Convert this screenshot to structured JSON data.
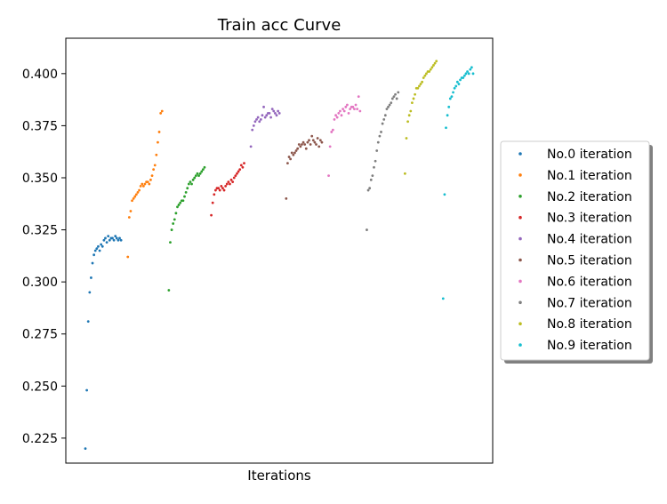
{
  "chart_data": {
    "type": "scatter",
    "title": "Train acc Curve",
    "xlabel": "Iterations",
    "ylabel": "",
    "ylim": [
      0.213,
      0.417
    ],
    "x_ticks_visible": false,
    "grid": false,
    "legend_placement": "outside-right",
    "y_ticks": [
      "0.225",
      "0.250",
      "0.275",
      "0.300",
      "0.325",
      "0.350",
      "0.375",
      "0.400"
    ],
    "series": [
      {
        "name": "No.0 iteration",
        "color": "#1f77b4",
        "values": [
          0.22,
          0.248,
          0.281,
          0.295,
          0.302,
          0.309,
          0.313,
          0.315,
          0.316,
          0.317,
          0.315,
          0.318,
          0.317,
          0.32,
          0.321,
          0.319,
          0.322,
          0.32,
          0.321,
          0.321,
          0.32,
          0.322,
          0.321,
          0.32,
          0.321,
          0.32
        ]
      },
      {
        "name": "No.1 iteration",
        "color": "#ff7f0e",
        "values": [
          0.312,
          0.331,
          0.334,
          0.339,
          0.34,
          0.341,
          0.342,
          0.343,
          0.344,
          0.346,
          0.347,
          0.346,
          0.347,
          0.348,
          0.348,
          0.347,
          0.349,
          0.351,
          0.354,
          0.356,
          0.361,
          0.367,
          0.372,
          0.381,
          0.382
        ]
      },
      {
        "name": "No.2 iteration",
        "color": "#2ca02c",
        "values": [
          0.296,
          0.319,
          0.325,
          0.328,
          0.33,
          0.333,
          0.336,
          0.337,
          0.338,
          0.339,
          0.339,
          0.341,
          0.343,
          0.345,
          0.347,
          0.348,
          0.347,
          0.349,
          0.35,
          0.351,
          0.352,
          0.351,
          0.352,
          0.353,
          0.354,
          0.355
        ]
      },
      {
        "name": "No.3 iteration",
        "color": "#d62728",
        "values": [
          0.332,
          0.338,
          0.342,
          0.344,
          0.345,
          0.345,
          0.344,
          0.346,
          0.345,
          0.344,
          0.346,
          0.347,
          0.348,
          0.347,
          0.349,
          0.348,
          0.35,
          0.351,
          0.352,
          0.353,
          0.354,
          0.356,
          0.355,
          0.357
        ]
      },
      {
        "name": "No.4 iteration",
        "color": "#9467bd",
        "values": [
          0.365,
          0.373,
          0.375,
          0.377,
          0.378,
          0.379,
          0.377,
          0.378,
          0.38,
          0.384,
          0.379,
          0.38,
          0.381,
          0.381,
          0.379,
          0.383,
          0.382,
          0.381,
          0.38,
          0.382,
          0.381
        ]
      },
      {
        "name": "No.5 iteration",
        "color": "#8c564b",
        "values": [
          0.34,
          0.357,
          0.36,
          0.359,
          0.362,
          0.361,
          0.362,
          0.363,
          0.364,
          0.366,
          0.365,
          0.366,
          0.367,
          0.366,
          0.364,
          0.367,
          0.368,
          0.366,
          0.37,
          0.368,
          0.367,
          0.366,
          0.369,
          0.365,
          0.368,
          0.367
        ]
      },
      {
        "name": "No.6 iteration",
        "color": "#e377c2",
        "values": [
          0.351,
          0.365,
          0.372,
          0.373,
          0.378,
          0.38,
          0.379,
          0.381,
          0.382,
          0.38,
          0.383,
          0.382,
          0.384,
          0.385,
          0.381,
          0.383,
          0.384,
          0.384,
          0.383,
          0.385,
          0.383,
          0.389,
          0.382
        ]
      },
      {
        "name": "No.7 iteration",
        "color": "#7f7f7f",
        "values": [
          0.325,
          0.344,
          0.345,
          0.349,
          0.351,
          0.355,
          0.358,
          0.363,
          0.367,
          0.37,
          0.372,
          0.376,
          0.378,
          0.38,
          0.383,
          0.384,
          0.385,
          0.386,
          0.388,
          0.389,
          0.39,
          0.388,
          0.391
        ]
      },
      {
        "name": "No.8 iteration",
        "color": "#bcbd22",
        "values": [
          0.352,
          0.369,
          0.377,
          0.38,
          0.382,
          0.386,
          0.388,
          0.39,
          0.393,
          0.393,
          0.394,
          0.395,
          0.396,
          0.398,
          0.399,
          0.4,
          0.401,
          0.401,
          0.402,
          0.403,
          0.404,
          0.405,
          0.406
        ]
      },
      {
        "name": "No.9 iteration",
        "color": "#17becf",
        "values": [
          0.292,
          0.342,
          0.374,
          0.38,
          0.384,
          0.388,
          0.389,
          0.391,
          0.393,
          0.394,
          0.396,
          0.395,
          0.397,
          0.398,
          0.398,
          0.399,
          0.4,
          0.401,
          0.4,
          0.402,
          0.403,
          0.4
        ]
      }
    ]
  }
}
